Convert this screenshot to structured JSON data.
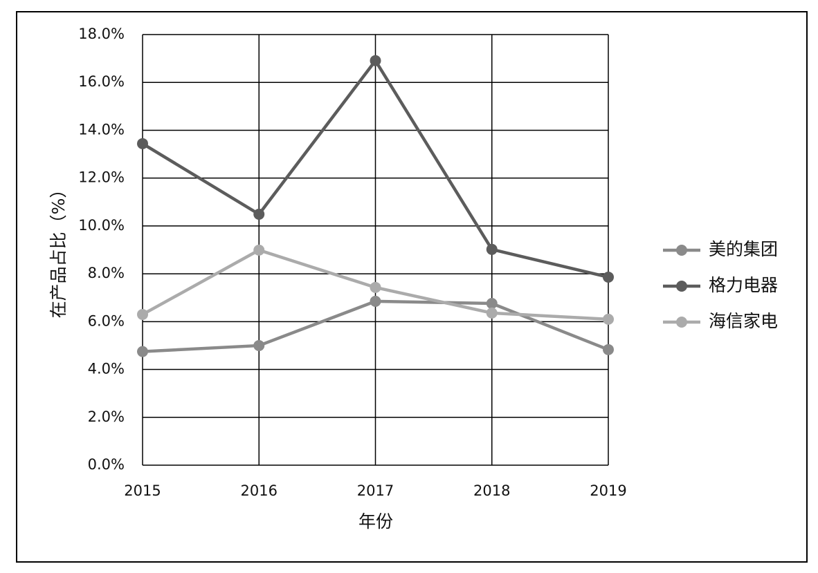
{
  "chart_data": {
    "type": "line",
    "x_label": "年份",
    "y_label": "在产品占比（%）",
    "x": [
      2015,
      2016,
      2017,
      2018,
      2019
    ],
    "xlim": [
      2015,
      2019
    ],
    "xticks": [
      2015,
      2016,
      2017,
      2018,
      2019
    ],
    "ylim": [
      0,
      18
    ],
    "yticks": [
      {
        "value": 0,
        "label": "0.0%"
      },
      {
        "value": 2,
        "label": "2.0%"
      },
      {
        "value": 4,
        "label": "4.0%"
      },
      {
        "value": 6,
        "label": "6.0%"
      },
      {
        "value": 8,
        "label": "8.0%"
      },
      {
        "value": 10,
        "label": "10.0%"
      },
      {
        "value": 12,
        "label": "12.0%"
      },
      {
        "value": 14,
        "label": "14.0%"
      },
      {
        "value": 16,
        "label": "16.0%"
      },
      {
        "value": 18,
        "label": "18.0%"
      }
    ],
    "grid": true,
    "legend": "right",
    "series": [
      {
        "name": "美的集团",
        "color": "#8a8a8a",
        "values": [
          4.75,
          5.0,
          6.85,
          6.76,
          4.83
        ]
      },
      {
        "name": "格力电器",
        "color": "#5c5c5c",
        "values": [
          13.44,
          10.49,
          16.91,
          9.02,
          7.86
        ]
      },
      {
        "name": "海信家电",
        "color": "#ababab",
        "values": [
          6.3,
          8.99,
          7.43,
          6.36,
          6.1
        ]
      }
    ]
  }
}
